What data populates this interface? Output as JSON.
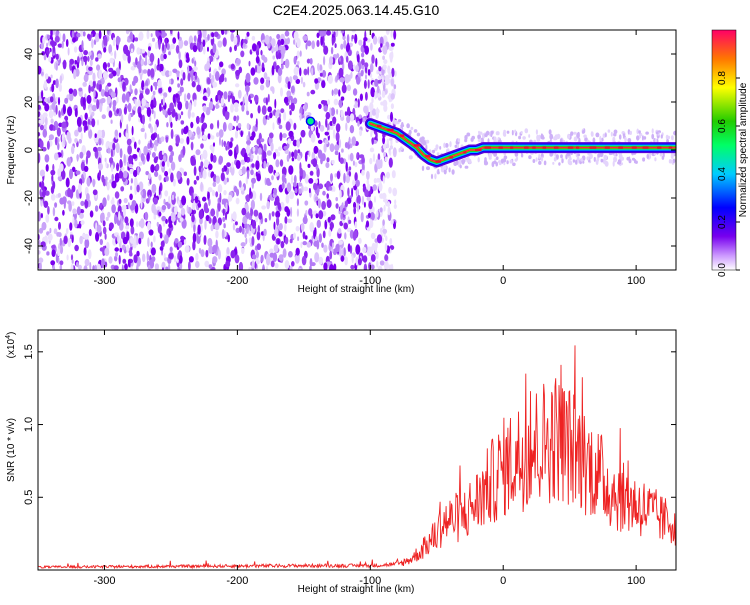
{
  "title": "C2E4.2025.063.14.45.G10",
  "chart_data": [
    {
      "type": "heatmap",
      "name": "spectrogram",
      "xlabel": "Height of straight line (km)",
      "ylabel": "Frequency (Hz)",
      "xlim": [
        -350,
        130
      ],
      "ylim": [
        -50,
        50
      ],
      "xticks": [
        -300,
        -200,
        -100,
        0,
        100
      ],
      "yticks": [
        -40,
        -20,
        0,
        20,
        40
      ],
      "noise_region_x": [
        -350,
        -87
      ],
      "signal_trace": {
        "x": [
          -100,
          -95,
          -90,
          -85,
          -80,
          -75,
          -70,
          -65,
          -60,
          -55,
          -50,
          -45,
          -40,
          -35,
          -30,
          -25,
          -20,
          -15,
          -10,
          -5,
          0,
          10,
          20,
          30,
          40,
          50,
          60,
          70,
          80,
          90,
          100,
          110,
          120,
          130
        ],
        "y": [
          11,
          10,
          9,
          8,
          7,
          5,
          3,
          1,
          -2,
          -4,
          -5,
          -4,
          -3,
          -2,
          -1,
          0,
          0,
          1,
          1,
          1,
          1,
          1,
          1,
          1,
          1,
          1,
          1,
          1,
          1,
          1,
          1,
          1,
          1,
          1
        ]
      },
      "colorbar": {
        "label": "Normalized spectral amplitude",
        "range": [
          0,
          1
        ],
        "ticks": [
          "0.0",
          "0.2",
          "0.4",
          "0.6",
          "0.8"
        ]
      }
    },
    {
      "type": "line",
      "name": "snr",
      "xlabel": "Height of straight line (km)",
      "ylabel": "SNR (10 * v/v)",
      "multiplier_label": "(x10",
      "multiplier_exp": "4",
      "xlim": [
        -350,
        130
      ],
      "ylim": [
        0,
        1.65
      ],
      "xticks": [
        -300,
        -200,
        -100,
        0,
        100
      ],
      "yticks": [
        "0.5",
        "1.0",
        "1.5"
      ],
      "color": "#ee2222",
      "envelope": {
        "x": [
          -350,
          -150,
          -100,
          -80,
          -70,
          -60,
          -50,
          -45,
          -40,
          -30,
          -20,
          -10,
          0,
          10,
          20,
          30,
          40,
          50,
          60,
          70,
          80,
          90,
          100,
          110,
          120,
          130
        ],
        "y": [
          0.02,
          0.03,
          0.03,
          0.04,
          0.08,
          0.16,
          0.28,
          0.36,
          0.38,
          0.42,
          0.52,
          0.65,
          0.78,
          0.85,
          0.92,
          0.98,
          1.02,
          0.95,
          0.85,
          0.75,
          0.62,
          0.55,
          0.5,
          0.45,
          0.38,
          0.36
        ]
      }
    }
  ]
}
